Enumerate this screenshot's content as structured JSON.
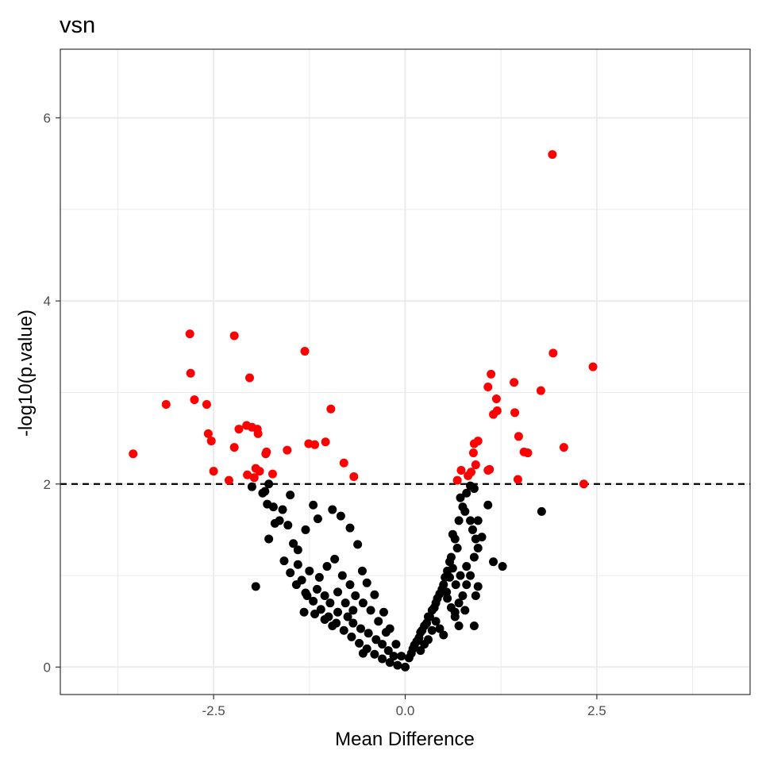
{
  "chart_data": {
    "type": "scatter",
    "title": "vsn",
    "xlabel": "Mean Difference",
    "ylabel": "-log10(p.value)",
    "xlim": [
      -4.5,
      4.5
    ],
    "ylim": [
      -0.3,
      6.75
    ],
    "x_ticks": [
      -2.5,
      0.0,
      2.5
    ],
    "x_tick_labels": [
      "-2.5",
      "0.0",
      "2.5"
    ],
    "y_ticks": [
      0,
      2,
      4,
      6
    ],
    "y_tick_labels": [
      "0",
      "2",
      "4",
      "6"
    ],
    "grid": true,
    "legend": "none",
    "threshold": {
      "y": 2,
      "style": "dashed",
      "color": "#000000"
    },
    "colors": {
      "significant": "#ff0000",
      "not_significant": "#000000",
      "panel_border": "#333333",
      "grid": "#ebebeb"
    },
    "series": [
      {
        "color": "#ff0000",
        "points": [
          [
            -3.55,
            2.33
          ],
          [
            -3.12,
            2.87
          ],
          [
            -2.81,
            3.64
          ],
          [
            -2.8,
            3.21
          ],
          [
            -2.75,
            2.92
          ],
          [
            -2.59,
            2.87
          ],
          [
            -2.57,
            2.55
          ],
          [
            -2.53,
            2.47
          ],
          [
            -2.5,
            2.14
          ],
          [
            -2.3,
            2.04
          ],
          [
            -2.23,
            3.62
          ],
          [
            -2.23,
            2.4
          ],
          [
            -2.17,
            2.6
          ],
          [
            -2.07,
            2.64
          ],
          [
            -2.06,
            2.1
          ],
          [
            -2.03,
            3.16
          ],
          [
            -2.0,
            2.62
          ],
          [
            -1.97,
            2.07
          ],
          [
            -1.95,
            2.17
          ],
          [
            -1.93,
            2.6
          ],
          [
            -1.92,
            2.55
          ],
          [
            -1.9,
            2.14
          ],
          [
            -1.82,
            2.33
          ],
          [
            -1.81,
            2.35
          ],
          [
            -1.73,
            2.11
          ],
          [
            -1.54,
            2.37
          ],
          [
            -1.31,
            3.45
          ],
          [
            -1.26,
            2.44
          ],
          [
            -1.18,
            2.43
          ],
          [
            -1.04,
            2.46
          ],
          [
            -0.97,
            2.82
          ],
          [
            -0.8,
            2.23
          ],
          [
            -0.67,
            2.08
          ],
          [
            0.68,
            2.04
          ],
          [
            0.73,
            2.15
          ],
          [
            0.82,
            2.09
          ],
          [
            0.86,
            2.13
          ],
          [
            0.89,
            2.34
          ],
          [
            0.9,
            2.44
          ],
          [
            0.92,
            2.21
          ],
          [
            0.95,
            2.47
          ],
          [
            1.08,
            3.06
          ],
          [
            1.08,
            2.15
          ],
          [
            1.1,
            2.16
          ],
          [
            1.12,
            3.2
          ],
          [
            1.15,
            2.76
          ],
          [
            1.19,
            2.93
          ],
          [
            1.2,
            2.8
          ],
          [
            1.42,
            3.11
          ],
          [
            1.43,
            2.78
          ],
          [
            1.47,
            2.05
          ],
          [
            1.48,
            2.52
          ],
          [
            1.55,
            2.35
          ],
          [
            1.6,
            2.34
          ],
          [
            1.77,
            3.02
          ],
          [
            1.92,
            5.6
          ],
          [
            1.93,
            3.43
          ],
          [
            2.07,
            2.4
          ],
          [
            2.33,
            2.0
          ],
          [
            2.45,
            3.28
          ]
        ]
      },
      {
        "color": "#000000",
        "points": [
          [
            -2.0,
            1.97
          ],
          [
            -1.86,
            1.9
          ],
          [
            -1.83,
            1.92
          ],
          [
            -1.8,
            1.78
          ],
          [
            -1.78,
            2.0
          ],
          [
            -1.72,
            1.75
          ],
          [
            -1.7,
            1.57
          ],
          [
            -1.64,
            1.6
          ],
          [
            -1.6,
            1.72
          ],
          [
            -1.5,
            1.88
          ],
          [
            -1.95,
            0.88
          ],
          [
            -1.78,
            1.4
          ],
          [
            -1.53,
            1.55
          ],
          [
            -1.46,
            1.35
          ],
          [
            -1.4,
            1.28
          ],
          [
            -1.3,
            1.5
          ],
          [
            -1.2,
            1.77
          ],
          [
            -1.14,
            1.62
          ],
          [
            -0.95,
            1.72
          ],
          [
            -0.84,
            1.65
          ],
          [
            -0.72,
            1.52
          ],
          [
            -0.62,
            1.34
          ],
          [
            -0.56,
            1.05
          ],
          [
            -0.5,
            0.92
          ],
          [
            -0.4,
            0.79
          ],
          [
            -0.28,
            0.6
          ],
          [
            -0.2,
            0.42
          ],
          [
            -0.12,
            0.25
          ],
          [
            -0.05,
            0.12
          ],
          [
            0.0,
            0.0
          ],
          [
            -1.58,
            1.16
          ],
          [
            -1.5,
            1.03
          ],
          [
            -1.42,
            0.9
          ],
          [
            -1.3,
            0.81
          ],
          [
            -1.2,
            0.72
          ],
          [
            -1.1,
            0.63
          ],
          [
            -1.0,
            0.55
          ],
          [
            -0.9,
            0.48
          ],
          [
            -0.8,
            0.4
          ],
          [
            -0.7,
            0.33
          ],
          [
            -0.6,
            0.26
          ],
          [
            -0.5,
            0.2
          ],
          [
            -0.4,
            0.14
          ],
          [
            -0.3,
            0.09
          ],
          [
            -0.2,
            0.05
          ],
          [
            -0.1,
            0.02
          ],
          [
            -1.32,
            0.6
          ],
          [
            -1.18,
            0.58
          ],
          [
            -1.05,
            0.52
          ],
          [
            -0.95,
            0.45
          ],
          [
            -0.88,
            0.6
          ],
          [
            -0.75,
            0.55
          ],
          [
            -0.68,
            0.48
          ],
          [
            -0.58,
            0.42
          ],
          [
            -0.48,
            0.37
          ],
          [
            -0.38,
            0.3
          ],
          [
            -0.3,
            0.25
          ],
          [
            -0.22,
            0.18
          ],
          [
            -0.15,
            0.12
          ],
          [
            -0.55,
            0.15
          ],
          [
            -1.25,
            1.05
          ],
          [
            -1.12,
            0.98
          ],
          [
            -1.02,
            1.1
          ],
          [
            -0.92,
            1.18
          ],
          [
            -0.82,
            1.0
          ],
          [
            -0.72,
            0.9
          ],
          [
            -0.65,
            0.78
          ],
          [
            -0.55,
            0.7
          ],
          [
            -0.45,
            0.62
          ],
          [
            -0.35,
            0.5
          ],
          [
            -1.4,
            1.12
          ],
          [
            -1.35,
            0.95
          ],
          [
            -1.28,
            0.78
          ],
          [
            -1.15,
            0.85
          ],
          [
            -1.05,
            0.78
          ],
          [
            -0.98,
            0.7
          ],
          [
            -0.88,
            0.82
          ],
          [
            -0.78,
            0.7
          ],
          [
            -0.68,
            0.62
          ],
          [
            -0.25,
            0.38
          ],
          [
            0.05,
            0.1
          ],
          [
            0.1,
            0.2
          ],
          [
            0.15,
            0.28
          ],
          [
            0.2,
            0.38
          ],
          [
            0.25,
            0.45
          ],
          [
            0.3,
            0.55
          ],
          [
            0.35,
            0.62
          ],
          [
            0.4,
            0.7
          ],
          [
            0.45,
            0.8
          ],
          [
            0.5,
            0.9
          ],
          [
            0.55,
            1.05
          ],
          [
            0.6,
            1.2
          ],
          [
            0.65,
            1.4
          ],
          [
            0.7,
            1.6
          ],
          [
            0.75,
            1.75
          ],
          [
            0.8,
            1.9
          ],
          [
            0.85,
            1.98
          ],
          [
            0.9,
            1.95
          ],
          [
            0.72,
            1.85
          ],
          [
            0.78,
            1.7
          ],
          [
            0.62,
            1.45
          ],
          [
            0.68,
            1.3
          ],
          [
            0.58,
            1.15
          ],
          [
            0.52,
            0.98
          ],
          [
            0.48,
            0.85
          ],
          [
            0.42,
            0.75
          ],
          [
            0.38,
            0.65
          ],
          [
            0.32,
            0.55
          ],
          [
            0.28,
            0.48
          ],
          [
            0.22,
            0.4
          ],
          [
            0.18,
            0.32
          ],
          [
            0.12,
            0.24
          ],
          [
            0.08,
            0.15
          ],
          [
            0.55,
            0.75
          ],
          [
            0.6,
            0.65
          ],
          [
            0.65,
            0.55
          ],
          [
            0.7,
            0.45
          ],
          [
            0.4,
            0.5
          ],
          [
            0.45,
            0.42
          ],
          [
            0.5,
            0.35
          ],
          [
            0.35,
            0.4
          ],
          [
            0.3,
            0.3
          ],
          [
            0.25,
            0.25
          ],
          [
            0.2,
            0.18
          ],
          [
            0.85,
            1.6
          ],
          [
            0.88,
            1.5
          ],
          [
            0.92,
            1.4
          ],
          [
            0.95,
            1.3
          ],
          [
            1.0,
            1.42
          ],
          [
            0.95,
            1.6
          ],
          [
            0.9,
            1.2
          ],
          [
            0.85,
            1.0
          ],
          [
            0.8,
            0.9
          ],
          [
            0.75,
            0.78
          ],
          [
            0.7,
            0.7
          ],
          [
            0.65,
            0.6
          ],
          [
            0.92,
            0.78
          ],
          [
            0.95,
            0.88
          ],
          [
            0.9,
            0.45
          ],
          [
            0.78,
            0.62
          ],
          [
            1.08,
            1.77
          ],
          [
            1.15,
            1.15
          ],
          [
            1.27,
            1.1
          ],
          [
            1.78,
            1.7
          ],
          [
            0.8,
            1.1
          ],
          [
            0.72,
            1.0
          ],
          [
            0.66,
            0.9
          ],
          [
            0.62,
            1.08
          ],
          [
            0.58,
            0.98
          ],
          [
            0.54,
            0.82
          ]
        ]
      }
    ]
  }
}
